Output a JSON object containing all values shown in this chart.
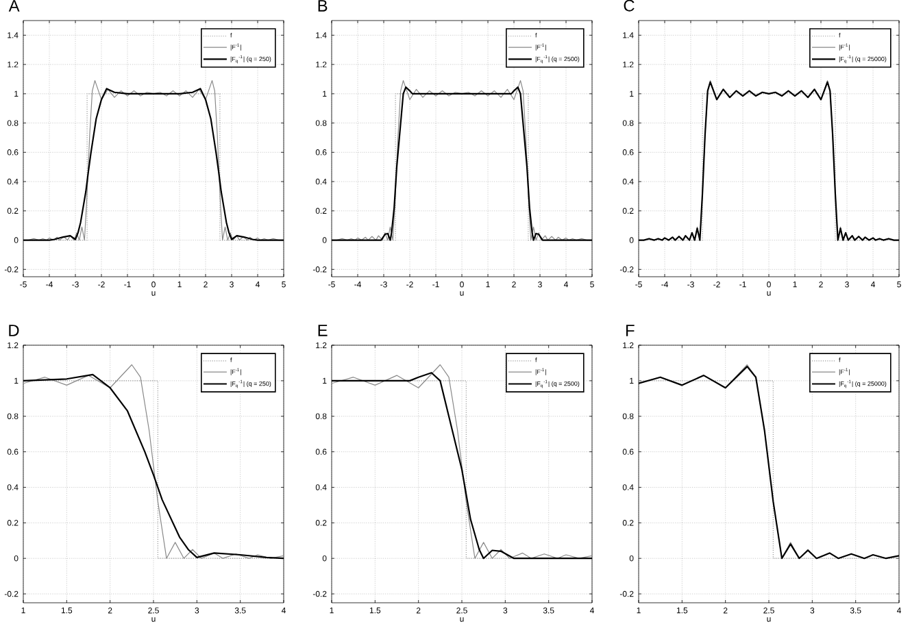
{
  "chart_data": [
    {
      "type": "line",
      "title": "A",
      "xlabel": "u",
      "xlim": [
        -5,
        5
      ],
      "xticks": [
        -5,
        -4,
        -3,
        -2,
        -1,
        0,
        1,
        2,
        3,
        4,
        5
      ],
      "ylim": [
        -0.25,
        1.5
      ],
      "yticks": [
        -0.2,
        0,
        0.2,
        0.4,
        0.6,
        0.8,
        1,
        1.2,
        1.4
      ],
      "grid": true,
      "legend": "top right",
      "series": [
        {
          "name": "f",
          "color": "#999999",
          "line_style": "dotted",
          "x": [
            -5,
            -2.55,
            -2.55,
            2.55,
            2.55,
            5
          ],
          "values": [
            0,
            0,
            1,
            1,
            0,
            0
          ]
        },
        {
          "name": "|F$^{-1}$|",
          "color": "#888888",
          "line_style": "solid",
          "x": [
            -5,
            -4.8,
            -4.6,
            -4.4,
            -4.25,
            -4.1,
            -4,
            -3.85,
            -3.7,
            -3.6,
            -3.45,
            -3.3,
            -3.2,
            -3.05,
            -2.95,
            -2.85,
            -2.75,
            -2.65,
            -2.55,
            -2.45,
            -2.35,
            -2.25,
            -2,
            -1.75,
            -1.5,
            -1.25,
            -1,
            -0.75,
            -0.5,
            -0.25,
            0,
            0.25,
            0.5,
            0.75,
            1,
            1.25,
            1.5,
            1.75,
            2,
            2.25,
            2.35,
            2.45,
            2.55,
            2.65,
            2.75,
            2.85,
            2.95,
            3.05,
            3.2,
            3.3,
            3.45,
            3.6,
            3.7,
            3.85,
            4,
            4.1,
            4.25,
            4.4,
            4.6,
            4.8,
            5
          ],
          "values": [
            0,
            0,
            0.01,
            0,
            0.01,
            0,
            0.015,
            0,
            0.02,
            0,
            0.025,
            0,
            0.03,
            0,
            0.05,
            0,
            0.09,
            0,
            0.32,
            0.72,
            1.02,
            1.09,
            0.96,
            1.03,
            0.975,
            1.02,
            0.985,
            1.02,
            0.985,
            1.01,
            1,
            1.01,
            0.985,
            1.02,
            0.985,
            1.02,
            0.975,
            1.03,
            0.96,
            1.09,
            1.02,
            0.72,
            0.32,
            0,
            0.09,
            0,
            0.05,
            0,
            0.03,
            0,
            0.025,
            0,
            0.02,
            0,
            0.015,
            0,
            0.01,
            0,
            0.01,
            0,
            0
          ]
        },
        {
          "name": "|F$_{q}$$^{-1}$| (q = 250)",
          "color": "#000000",
          "line_style": "solid",
          "x": [
            -5,
            -4,
            -3.8,
            -3.5,
            -3.2,
            -3,
            -2.9,
            -2.8,
            -2.6,
            -2.5,
            -2.4,
            -2.2,
            -2,
            -1.8,
            -1.5,
            -1,
            0,
            1,
            1.5,
            1.8,
            2,
            2.2,
            2.4,
            2.5,
            2.6,
            2.8,
            2.9,
            3,
            3.2,
            3.5,
            3.8,
            4,
            5
          ],
          "values": [
            0,
            0,
            0.005,
            0.02,
            0.03,
            0.005,
            0.05,
            0.12,
            0.33,
            0.47,
            0.6,
            0.83,
            0.96,
            1.035,
            1.01,
            1,
            1,
            1,
            1.01,
            1.035,
            0.96,
            0.83,
            0.6,
            0.47,
            0.33,
            0.12,
            0.05,
            0.005,
            0.03,
            0.02,
            0.005,
            0,
            0
          ]
        }
      ]
    },
    {
      "type": "line",
      "title": "B",
      "xlabel": "u",
      "xlim": [
        -5,
        5
      ],
      "xticks": [
        -5,
        -4,
        -3,
        -2,
        -1,
        0,
        1,
        2,
        3,
        4,
        5
      ],
      "ylim": [
        -0.25,
        1.5
      ],
      "yticks": [
        -0.2,
        0,
        0.2,
        0.4,
        0.6,
        0.8,
        1,
        1.2,
        1.4
      ],
      "grid": true,
      "legend": "top right",
      "series": [
        {
          "name": "f",
          "color": "#999999",
          "line_style": "dotted",
          "x": [
            -5,
            -2.55,
            -2.55,
            2.55,
            2.55,
            5
          ],
          "values": [
            0,
            0,
            1,
            1,
            0,
            0
          ]
        },
        {
          "name": "|F$^{-1}$|",
          "color": "#888888",
          "line_style": "solid",
          "x": [
            -5,
            -4.8,
            -4.6,
            -4.4,
            -4.25,
            -4.1,
            -4,
            -3.85,
            -3.7,
            -3.6,
            -3.45,
            -3.3,
            -3.2,
            -3.05,
            -2.95,
            -2.85,
            -2.75,
            -2.65,
            -2.55,
            -2.45,
            -2.35,
            -2.25,
            -2,
            -1.75,
            -1.5,
            -1.25,
            -1,
            -0.75,
            -0.5,
            -0.25,
            0,
            0.25,
            0.5,
            0.75,
            1,
            1.25,
            1.5,
            1.75,
            2,
            2.25,
            2.35,
            2.45,
            2.55,
            2.65,
            2.75,
            2.85,
            2.95,
            3.05,
            3.2,
            3.3,
            3.45,
            3.6,
            3.7,
            3.85,
            4,
            4.1,
            4.25,
            4.4,
            4.6,
            4.8,
            5
          ],
          "values": [
            0,
            0,
            0.01,
            0,
            0.01,
            0,
            0.015,
            0,
            0.02,
            0,
            0.025,
            0,
            0.03,
            0,
            0.05,
            0,
            0.09,
            0,
            0.32,
            0.72,
            1.02,
            1.09,
            0.96,
            1.03,
            0.975,
            1.02,
            0.985,
            1.02,
            0.985,
            1.01,
            1,
            1.01,
            0.985,
            1.02,
            0.985,
            1.02,
            0.975,
            1.03,
            0.96,
            1.09,
            1.02,
            0.72,
            0.32,
            0,
            0.09,
            0,
            0.05,
            0,
            0.03,
            0,
            0.025,
            0,
            0.02,
            0,
            0.015,
            0,
            0.01,
            0,
            0.01,
            0,
            0
          ]
        },
        {
          "name": "|F$_{q}$$^{-1}$| (q = 2500)",
          "color": "#000000",
          "line_style": "solid",
          "x": [
            -5,
            -4,
            -3.1,
            -2.95,
            -2.85,
            -2.75,
            -2.7,
            -2.6,
            -2.5,
            -2.35,
            -2.25,
            -2.15,
            -2,
            -1.9,
            -1,
            0,
            1,
            1.9,
            2,
            2.15,
            2.25,
            2.35,
            2.5,
            2.6,
            2.7,
            2.75,
            2.85,
            2.95,
            3.1,
            4,
            5
          ],
          "values": [
            0,
            0,
            0,
            0.04,
            0.045,
            0,
            0.05,
            0.22,
            0.5,
            0.8,
            1.0,
            1.045,
            1.02,
            1,
            1,
            1,
            1,
            1,
            1.02,
            1.045,
            1.0,
            0.8,
            0.5,
            0.22,
            0.05,
            0,
            0.045,
            0.04,
            0,
            0,
            0
          ]
        }
      ]
    },
    {
      "type": "line",
      "title": "C",
      "xlabel": "u",
      "xlim": [
        -5,
        5
      ],
      "xticks": [
        -5,
        -4,
        -3,
        -2,
        -1,
        0,
        1,
        2,
        3,
        4,
        5
      ],
      "ylim": [
        -0.25,
        1.5
      ],
      "yticks": [
        -0.2,
        0,
        0.2,
        0.4,
        0.6,
        0.8,
        1,
        1.2,
        1.4
      ],
      "grid": true,
      "legend": "top right",
      "series": [
        {
          "name": "f",
          "color": "#999999",
          "line_style": "dotted",
          "x": [
            -5,
            -2.55,
            -2.55,
            2.55,
            2.55,
            5
          ],
          "values": [
            0,
            0,
            1,
            1,
            0,
            0
          ]
        },
        {
          "name": "|F$^{-1}$|",
          "color": "#888888",
          "line_style": "solid",
          "x": [
            -5,
            -4.8,
            -4.6,
            -4.4,
            -4.25,
            -4.1,
            -4,
            -3.85,
            -3.7,
            -3.6,
            -3.45,
            -3.3,
            -3.2,
            -3.05,
            -2.95,
            -2.85,
            -2.75,
            -2.65,
            -2.55,
            -2.45,
            -2.35,
            -2.25,
            -2,
            -1.75,
            -1.5,
            -1.25,
            -1,
            -0.75,
            -0.5,
            -0.25,
            0,
            0.25,
            0.5,
            0.75,
            1,
            1.25,
            1.5,
            1.75,
            2,
            2.25,
            2.35,
            2.45,
            2.55,
            2.65,
            2.75,
            2.85,
            2.95,
            3.05,
            3.2,
            3.3,
            3.45,
            3.6,
            3.7,
            3.85,
            4,
            4.1,
            4.25,
            4.4,
            4.6,
            4.8,
            5
          ],
          "values": [
            0,
            0,
            0.01,
            0,
            0.01,
            0,
            0.015,
            0,
            0.02,
            0,
            0.025,
            0,
            0.03,
            0,
            0.05,
            0,
            0.09,
            0,
            0.32,
            0.72,
            1.02,
            1.09,
            0.96,
            1.03,
            0.975,
            1.02,
            0.985,
            1.02,
            0.985,
            1.01,
            1,
            1.01,
            0.985,
            1.02,
            0.985,
            1.02,
            0.975,
            1.03,
            0.96,
            1.09,
            1.02,
            0.72,
            0.32,
            0,
            0.09,
            0,
            0.05,
            0,
            0.03,
            0,
            0.025,
            0,
            0.02,
            0,
            0.015,
            0,
            0.01,
            0,
            0.01,
            0,
            0
          ]
        },
        {
          "name": "|F$_{q}$$^{-1}$| (q = 25000)",
          "color": "#000000",
          "line_style": "solid",
          "x": [
            -5,
            -4.8,
            -4.6,
            -4.4,
            -4.25,
            -4.1,
            -4,
            -3.85,
            -3.7,
            -3.6,
            -3.45,
            -3.3,
            -3.2,
            -3.05,
            -2.95,
            -2.85,
            -2.75,
            -2.65,
            -2.55,
            -2.45,
            -2.35,
            -2.25,
            -2,
            -1.75,
            -1.5,
            -1.25,
            -1,
            -0.75,
            -0.5,
            -0.25,
            0,
            0.25,
            0.5,
            0.75,
            1,
            1.25,
            1.5,
            1.75,
            2,
            2.25,
            2.35,
            2.45,
            2.55,
            2.65,
            2.75,
            2.85,
            2.95,
            3.05,
            3.2,
            3.3,
            3.45,
            3.6,
            3.7,
            3.85,
            4,
            4.1,
            4.25,
            4.4,
            4.6,
            4.8,
            5
          ],
          "values": [
            0,
            0,
            0.01,
            0,
            0.01,
            0,
            0.015,
            0,
            0.02,
            0,
            0.025,
            0,
            0.03,
            0,
            0.05,
            0,
            0.08,
            0,
            0.32,
            0.72,
            1.02,
            1.08,
            0.96,
            1.03,
            0.975,
            1.02,
            0.985,
            1.02,
            0.985,
            1.01,
            1,
            1.01,
            0.985,
            1.02,
            0.985,
            1.02,
            0.975,
            1.03,
            0.96,
            1.08,
            1.02,
            0.72,
            0.32,
            0,
            0.08,
            0,
            0.05,
            0,
            0.03,
            0,
            0.025,
            0,
            0.02,
            0,
            0.015,
            0,
            0.01,
            0,
            0.01,
            0,
            0
          ]
        }
      ]
    },
    {
      "type": "line",
      "title": "D",
      "xlabel": "u",
      "xlim": [
        1,
        4
      ],
      "xticks": [
        1,
        1.5,
        2,
        2.5,
        3,
        3.5,
        4
      ],
      "ylim": [
        -0.25,
        1.2
      ],
      "yticks": [
        -0.2,
        0,
        0.2,
        0.4,
        0.6,
        0.8,
        1,
        1.2
      ],
      "grid": true,
      "legend": "top right",
      "series": [
        {
          "name": "f",
          "color": "#999999",
          "line_style": "dotted",
          "x": [
            1,
            2.55,
            2.55,
            4
          ],
          "values": [
            1,
            1,
            0,
            0
          ]
        },
        {
          "name": "|F$^{-1}$|",
          "color": "#888888",
          "line_style": "solid",
          "x": [
            1,
            1.25,
            1.5,
            1.75,
            2,
            2.25,
            2.35,
            2.45,
            2.55,
            2.65,
            2.75,
            2.85,
            2.95,
            3.05,
            3.2,
            3.3,
            3.45,
            3.6,
            3.7,
            3.85,
            4
          ],
          "values": [
            0.985,
            1.02,
            0.975,
            1.03,
            0.96,
            1.09,
            1.02,
            0.72,
            0.32,
            0,
            0.09,
            0,
            0.05,
            0,
            0.03,
            0,
            0.025,
            0,
            0.02,
            0,
            0.015
          ]
        },
        {
          "name": "|F$_{q}$$^{-1}$| (q = 250)",
          "color": "#000000",
          "line_style": "solid",
          "x": [
            1,
            1.5,
            1.8,
            2,
            2.2,
            2.4,
            2.5,
            2.6,
            2.8,
            2.9,
            3,
            3.2,
            3.5,
            3.8,
            4
          ],
          "values": [
            1,
            1.01,
            1.035,
            0.96,
            0.83,
            0.6,
            0.47,
            0.33,
            0.12,
            0.05,
            0.005,
            0.03,
            0.02,
            0.005,
            0
          ]
        }
      ]
    },
    {
      "type": "line",
      "title": "E",
      "xlabel": "u",
      "xlim": [
        1,
        4
      ],
      "xticks": [
        1,
        1.5,
        2,
        2.5,
        3,
        3.5,
        4
      ],
      "ylim": [
        -0.25,
        1.2
      ],
      "yticks": [
        -0.2,
        0,
        0.2,
        0.4,
        0.6,
        0.8,
        1,
        1.2
      ],
      "grid": true,
      "legend": "top right",
      "series": [
        {
          "name": "f",
          "color": "#999999",
          "line_style": "dotted",
          "x": [
            1,
            2.55,
            2.55,
            4
          ],
          "values": [
            1,
            1,
            0,
            0
          ]
        },
        {
          "name": "|F$^{-1}$|",
          "color": "#888888",
          "line_style": "solid",
          "x": [
            1,
            1.25,
            1.5,
            1.75,
            2,
            2.25,
            2.35,
            2.45,
            2.55,
            2.65,
            2.75,
            2.85,
            2.95,
            3.05,
            3.2,
            3.3,
            3.45,
            3.6,
            3.7,
            3.85,
            4
          ],
          "values": [
            0.985,
            1.02,
            0.975,
            1.03,
            0.96,
            1.09,
            1.02,
            0.72,
            0.32,
            0,
            0.09,
            0,
            0.05,
            0,
            0.03,
            0,
            0.025,
            0,
            0.02,
            0,
            0.015
          ]
        },
        {
          "name": "|F$_{q}$$^{-1}$| (q = 2500)",
          "color": "#000000",
          "line_style": "solid",
          "x": [
            1,
            1.9,
            2,
            2.15,
            2.25,
            2.35,
            2.5,
            2.6,
            2.7,
            2.75,
            2.85,
            2.95,
            3.1,
            4
          ],
          "values": [
            1,
            1,
            1.02,
            1.045,
            1.0,
            0.8,
            0.5,
            0.22,
            0.05,
            0,
            0.045,
            0.04,
            0,
            0
          ]
        }
      ]
    },
    {
      "type": "line",
      "title": "F",
      "xlabel": "u",
      "xlim": [
        1,
        4
      ],
      "xticks": [
        1,
        1.5,
        2,
        2.5,
        3,
        3.5,
        4
      ],
      "ylim": [
        -0.25,
        1.2
      ],
      "yticks": [
        -0.2,
        0,
        0.2,
        0.4,
        0.6,
        0.8,
        1,
        1.2
      ],
      "grid": true,
      "legend": "top right",
      "series": [
        {
          "name": "f",
          "color": "#999999",
          "line_style": "dotted",
          "x": [
            1,
            2.55,
            2.55,
            4
          ],
          "values": [
            1,
            1,
            0,
            0
          ]
        },
        {
          "name": "|F$^{-1}$|",
          "color": "#888888",
          "line_style": "solid",
          "x": [
            1,
            1.25,
            1.5,
            1.75,
            2,
            2.25,
            2.35,
            2.45,
            2.55,
            2.65,
            2.75,
            2.85,
            2.95,
            3.05,
            3.2,
            3.3,
            3.45,
            3.6,
            3.7,
            3.85,
            4
          ],
          "values": [
            0.985,
            1.02,
            0.975,
            1.03,
            0.96,
            1.09,
            1.02,
            0.72,
            0.32,
            0,
            0.09,
            0,
            0.05,
            0,
            0.03,
            0,
            0.025,
            0,
            0.02,
            0,
            0.015
          ]
        },
        {
          "name": "|F$_{q}$$^{-1}$| (q = 25000)",
          "color": "#000000",
          "line_style": "solid",
          "x": [
            1,
            1.25,
            1.5,
            1.75,
            2,
            2.25,
            2.35,
            2.45,
            2.55,
            2.65,
            2.75,
            2.85,
            2.95,
            3.05,
            3.2,
            3.3,
            3.45,
            3.6,
            3.7,
            3.85,
            4
          ],
          "values": [
            0.985,
            1.02,
            0.975,
            1.03,
            0.96,
            1.08,
            1.02,
            0.72,
            0.32,
            0,
            0.08,
            0,
            0.045,
            0,
            0.03,
            0,
            0.025,
            0,
            0.02,
            0,
            0.015
          ]
        }
      ]
    }
  ]
}
